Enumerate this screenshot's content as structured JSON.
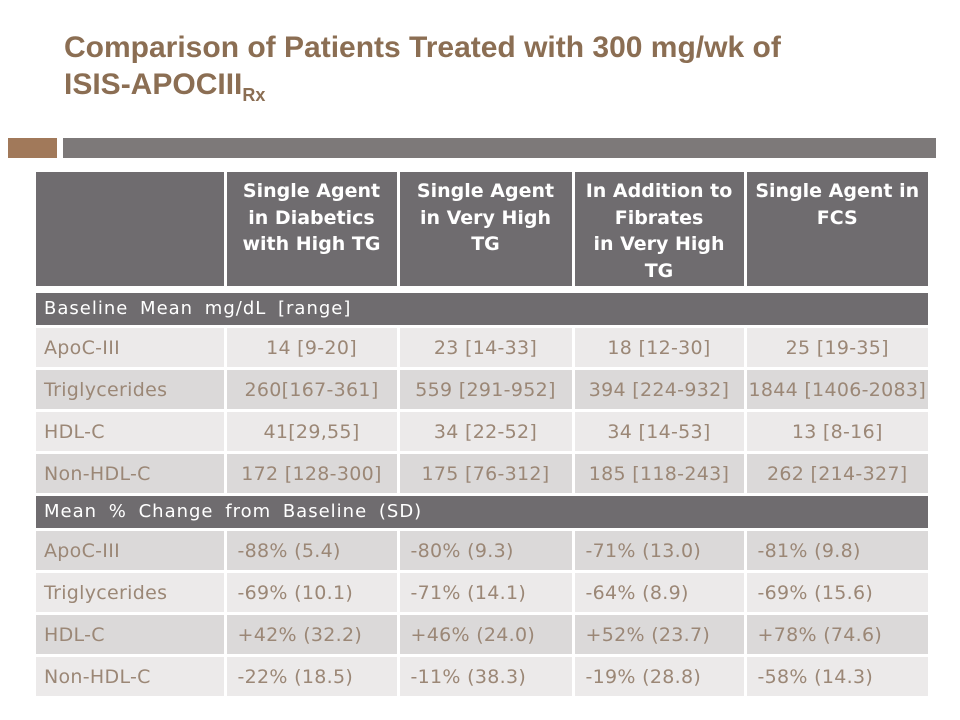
{
  "slide": {
    "title_line1": "Comparison of Patients Treated with 300 mg/wk of",
    "title_line2_main": "ISIS-APOCIII",
    "title_line2_sub": "Rx"
  },
  "colors": {
    "title": "#8B6E53",
    "accent_square": "#A1795A",
    "accent_bar": "#7D7979",
    "table_header_bg": "#6F6C6F",
    "row_light": "#ECEAEA",
    "row_dark": "#DBD9D9",
    "data_text": "#9B8776",
    "header_text": "#FFFFFF"
  },
  "table": {
    "column_headers": [
      "",
      "Single Agent\nin Diabetics\nwith High TG",
      "Single Agent\nin Very High\nTG",
      "In Addition to\nFibrates\nin Very High\nTG",
      "Single Agent in\nFCS"
    ],
    "sections": [
      {
        "header": "Baseline Mean mg/dL [range]",
        "align": "center",
        "rows": [
          {
            "label": "ApoC-III",
            "band": "light",
            "values": [
              "14 [9-20]",
              "23 [14-33]",
              "18 [12-30]",
              "25 [19-35]"
            ]
          },
          {
            "label": "Triglycerides",
            "band": "dark",
            "values": [
              "260[167-361]",
              "559 [291-952]",
              "394 [224-932]",
              "1844 [1406-2083]"
            ]
          },
          {
            "label": "HDL-C",
            "band": "light",
            "values": [
              "41[29,55]",
              "34 [22-52]",
              "34 [14-53]",
              "13 [8-16]"
            ]
          },
          {
            "label": "Non-HDL-C",
            "band": "dark",
            "values": [
              "172 [128-300]",
              "175 [76-312]",
              "185 [118-243]",
              "262 [214-327]"
            ]
          }
        ]
      },
      {
        "header": "Mean % Change from Baseline (SD)",
        "align": "left",
        "rows": [
          {
            "label": "ApoC-III",
            "band": "dark",
            "values": [
              "-88% (5.4)",
              "-80% (9.3)",
              "-71% (13.0)",
              "-81% (9.8)"
            ]
          },
          {
            "label": "Triglycerides",
            "band": "light",
            "values": [
              "-69% (10.1)",
              "-71% (14.1)",
              "-64% (8.9)",
              "-69% (15.6)"
            ]
          },
          {
            "label": "HDL-C",
            "band": "dark",
            "values": [
              "+42% (32.2)",
              "+46% (24.0)",
              "+52% (23.7)",
              "+78% (74.6)"
            ]
          },
          {
            "label": "Non-HDL-C",
            "band": "light",
            "values": [
              "-22% (18.5)",
              "-11% (38.3)",
              "-19% (28.8)",
              "-58% (14.3)"
            ]
          }
        ]
      }
    ]
  }
}
